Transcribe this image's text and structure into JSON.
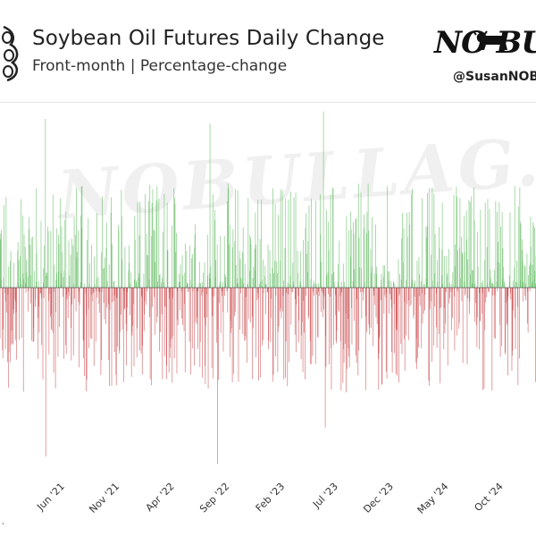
{
  "header": {
    "title": "Soybean Oil Futures Daily Change",
    "subtitle": "Front-month | Percentage-change",
    "brand": "NO BU",
    "handle": "@SusanNOBU",
    "watermark": "NOBULLAG.COM"
  },
  "colors": {
    "positive": "#5cb85c",
    "negative": "#c9484b",
    "baseline": "#555555"
  },
  "chart_data": {
    "type": "bar",
    "title": "Soybean Oil Futures Daily Change",
    "subtitle": "Front-month | Percentage-change",
    "x_tick_labels": [
      "Jun '21",
      "Nov '21",
      "Apr '22",
      "Sep '22",
      "Feb '23",
      "Jul '23",
      "Dec '23",
      "May '24",
      "Oct '24"
    ],
    "units": "percent",
    "ylim": [
      -7.5,
      7.5
    ],
    "grid": false,
    "legend": "none",
    "spikes": [
      {
        "date": "2021-05-10",
        "value": 7.0
      },
      {
        "date": "2021-05-11",
        "value": -7.0
      },
      {
        "date": "2022-08-10",
        "value": 6.8
      },
      {
        "date": "2022-08-31",
        "value": -7.3
      },
      {
        "date": "2023-06-21",
        "value": 7.3
      },
      {
        "date": "2023-06-26",
        "value": -5.8
      }
    ]
  }
}
